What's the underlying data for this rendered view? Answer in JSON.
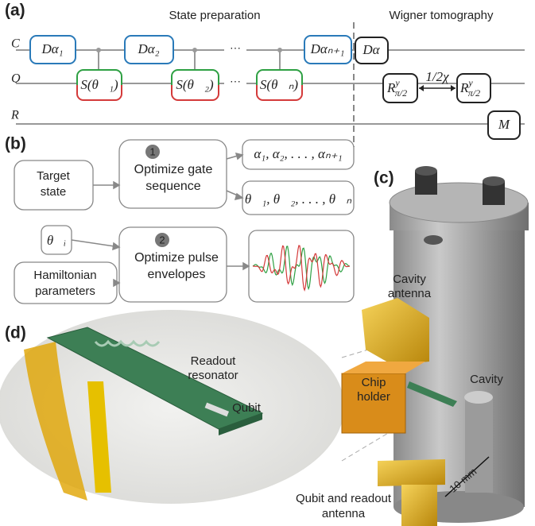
{
  "panel_a": {
    "label": "(a)",
    "left_heading": "State preparation",
    "right_heading": "Wigner tomography",
    "wires": [
      "C",
      "Q",
      "R"
    ],
    "displacements": [
      "Dα₁",
      "Dα₂",
      "Dαₙ₊₁",
      "Dα"
    ],
    "snaps": [
      "S(θ⃗₁)",
      "S(θ⃗₂)",
      "S(θ⃗ₙ)"
    ],
    "rotations": [
      {
        "base": "R",
        "sup": "y",
        "sub": "π/2"
      },
      {
        "base": "R",
        "sup": "y",
        "sub": "π/2"
      }
    ],
    "wait": "1/2χ",
    "measure": "M"
  },
  "panel_b": {
    "label": "(b)",
    "target": [
      "Target",
      "state"
    ],
    "step1": {
      "number": "1",
      "text": [
        "Optimize gate",
        "sequence"
      ]
    },
    "alphas": "α₁, α₂, . . . , αₙ₊₁",
    "thetas": "θ⃗₁, θ⃗₂, . . . , θ⃗ₙ",
    "theta_i": "θ⃗ᵢ",
    "hamiltonian": [
      "Hamiltonian",
      "parameters"
    ],
    "step2": {
      "number": "2",
      "text": [
        "Optimize pulse",
        "envelopes"
      ]
    }
  },
  "panel_c": {
    "label": "(c)",
    "cavity_antenna": [
      "Cavity",
      "antenna"
    ],
    "cavity": "Cavity",
    "chip_holder": [
      "Chip",
      "holder"
    ],
    "scale": "10 mm",
    "qubit_antenna": [
      "Qubit and readout",
      "antenna"
    ]
  },
  "panel_d": {
    "label": "(d)",
    "readout": [
      "Readout",
      "resonator"
    ],
    "qubit": "Qubit"
  }
}
